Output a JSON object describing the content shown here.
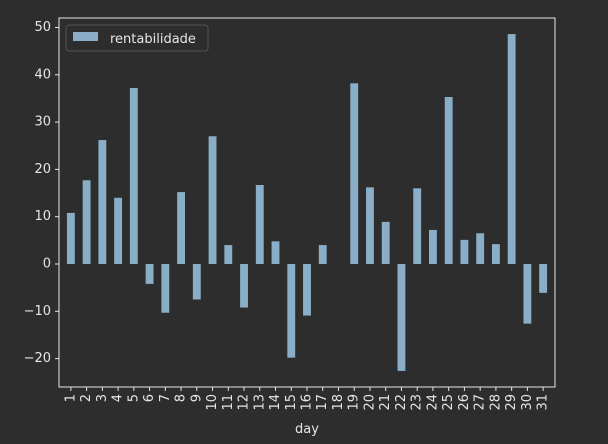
{
  "chart_data": {
    "type": "bar",
    "title": "",
    "xlabel": "day",
    "ylabel": "",
    "ylim": [
      -26,
      52
    ],
    "yticks": [
      -20,
      -10,
      0,
      10,
      20,
      30,
      40,
      50
    ],
    "grid": false,
    "legend_position": "top-left",
    "categories": [
      "1",
      "2",
      "3",
      "4",
      "5",
      "6",
      "7",
      "8",
      "9",
      "10",
      "11",
      "12",
      "13",
      "14",
      "15",
      "16",
      "17",
      "18",
      "19",
      "20",
      "21",
      "22",
      "23",
      "24",
      "25",
      "26",
      "27",
      "28",
      "29",
      "30",
      "31"
    ],
    "series": [
      {
        "name": "rentabilidade",
        "color": "#8aaec8",
        "values": [
          10.8,
          17.7,
          26.2,
          14.0,
          37.2,
          -4.2,
          -10.3,
          15.2,
          -7.5,
          27.0,
          4.0,
          -9.2,
          16.7,
          4.8,
          -19.8,
          -10.9,
          4.0,
          0.0,
          38.2,
          16.2,
          8.9,
          -22.6,
          16.0,
          7.2,
          35.3,
          5.1,
          6.5,
          4.2,
          48.6,
          -12.6,
          -6.1
        ]
      }
    ]
  }
}
